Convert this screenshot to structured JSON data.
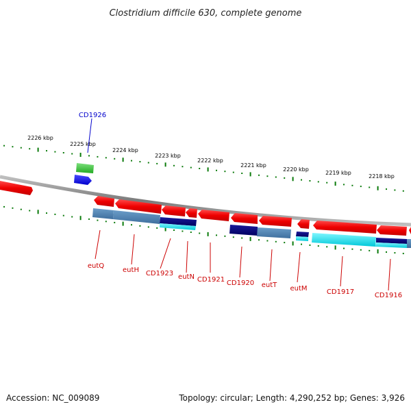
{
  "title": "Clostridium difficile 630, complete genome",
  "footer": {
    "accession": "Accession: NC_009089",
    "summary": "Topology: circular; Length: 4,290,252 bp; Genes: 3,926"
  },
  "colors": {
    "forward_cds": "#ff0000",
    "forward_other": "#33cc33",
    "forward_blue": "#1a1aff",
    "reverse_cds": "#ee0000",
    "reverse_steelblue": "#4a7fb0",
    "reverse_navy": "#0a0a80",
    "reverse_cyan": "#00e5ee",
    "backbone": "#8c8c8c",
    "tick": "#0a7a0a",
    "label_red": "#cc0000",
    "label_blue": "#0000cc"
  },
  "scale_labels": [
    "2226 kbp",
    "2225 kbp",
    "2224 kbp",
    "2223 kbp",
    "2222 kbp",
    "2221 kbp",
    "2220 kbp",
    "2219 kbp",
    "2218 kbp"
  ],
  "gene_labels_top": [
    "CD1926"
  ],
  "gene_labels_bottom": [
    "eutQ",
    "eutH",
    "CD1923",
    "eutN",
    "CD1921",
    "CD1920",
    "eutT",
    "eutM",
    "CD1917",
    "CD1916"
  ]
}
